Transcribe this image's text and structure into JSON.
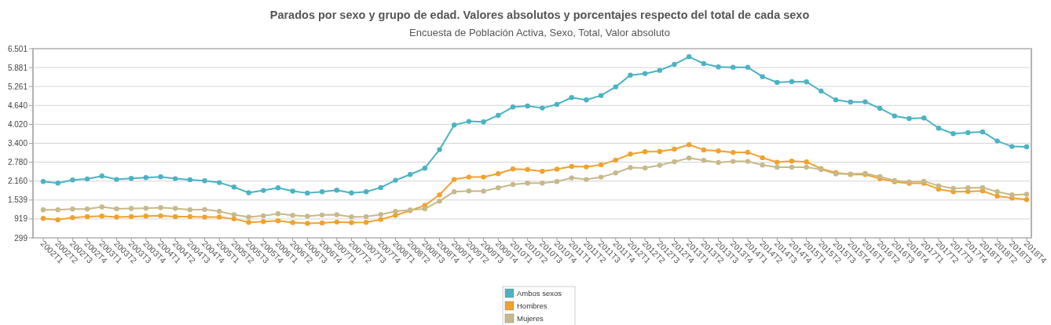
{
  "chart_data": {
    "type": "line",
    "title": "Parados por sexo y grupo de edad. Valores absolutos y porcentajes respecto del total de cada sexo",
    "subtitle": "Encuesta de Población Activa, Sexo, Total, Valor absoluto",
    "categories": [
      "2002T1",
      "2002T2",
      "2002T3",
      "2002T4",
      "2003T1",
      "2003T2",
      "2003T3",
      "2003T4",
      "2004T1",
      "2004T2",
      "2004T3",
      "2004T4",
      "2005T1",
      "2005T2",
      "2005T3",
      "2005T4",
      "2006T1",
      "2006T2",
      "2006T3",
      "2006T4",
      "2007T1",
      "2007T2",
      "2007T3",
      "2007T4",
      "2008T1",
      "2008T2",
      "2008T3",
      "2008T4",
      "2009T1",
      "2009T2",
      "2009T3",
      "2009T4",
      "2010T1",
      "2010T2",
      "2010T3",
      "2010T4",
      "2011T1",
      "2011T2",
      "2011T3",
      "2011T4",
      "2012T1",
      "2012T2",
      "2012T3",
      "2012T4",
      "2013T1",
      "2013T2",
      "2013T3",
      "2013T4",
      "2014T1",
      "2014T2",
      "2014T3",
      "2014T4",
      "2015T1",
      "2015T2",
      "2015T3",
      "2015T4",
      "2016T1",
      "2016T2",
      "2016T3",
      "2016T4",
      "2017T1",
      "2017T2",
      "2017T3",
      "2017T4",
      "2018T1",
      "2018T2",
      "2018T3",
      "2018T4"
    ],
    "series": [
      {
        "name": "Ambos sexos",
        "color": "#4bb3c4",
        "values": [
          2146,
          2094,
          2197,
          2231,
          2326,
          2214,
          2249,
          2275,
          2301,
          2240,
          2206,
          2171,
          2111,
          1966,
          1777,
          1854,
          1940,
          1829,
          1769,
          1812,
          1863,
          1772,
          1812,
          1949,
          2188,
          2378,
          2584,
          3191,
          3999,
          4118,
          4101,
          4315,
          4590,
          4624,
          4555,
          4675,
          4899,
          4822,
          4966,
          5249,
          5634,
          5686,
          5789,
          5987,
          6236,
          6012,
          5902,
          5892,
          5892,
          5583,
          5395,
          5421,
          5413,
          5112,
          4822,
          4752,
          4760,
          4546,
          4297,
          4212,
          4230,
          3896,
          3716,
          3750,
          3775,
          3474,
          3294,
          3286
        ]
      },
      {
        "name": "Hombres",
        "color": "#f0a22e",
        "values": [
          937,
          894,
          963,
          997,
          1014,
          980,
          997,
          1014,
          1023,
          997,
          997,
          980,
          980,
          920,
          808,
          834,
          860,
          800,
          774,
          791,
          817,
          800,
          808,
          901,
          1040,
          1194,
          1365,
          1709,
          2214,
          2291,
          2291,
          2404,
          2558,
          2540,
          2480,
          2549,
          2643,
          2626,
          2695,
          2849,
          3047,
          3124,
          3132,
          3209,
          3355,
          3183,
          3149,
          3098,
          3106,
          2926,
          2780,
          2815,
          2789,
          2566,
          2437,
          2378,
          2378,
          2240,
          2137,
          2085,
          2085,
          1897,
          1812,
          1820,
          1838,
          1665,
          1605,
          1555
        ]
      },
      {
        "name": "Mujeres",
        "color": "#c8b98a",
        "values": [
          1220,
          1220,
          1246,
          1246,
          1314,
          1254,
          1263,
          1272,
          1289,
          1263,
          1220,
          1229,
          1169,
          1057,
          980,
          1023,
          1092,
          1040,
          1006,
          1049,
          1057,
          990,
          997,
          1066,
          1169,
          1211,
          1254,
          1503,
          1812,
          1838,
          1829,
          1940,
          2051,
          2094,
          2094,
          2146,
          2265,
          2214,
          2291,
          2429,
          2601,
          2592,
          2678,
          2797,
          2918,
          2842,
          2772,
          2806,
          2806,
          2687,
          2618,
          2618,
          2618,
          2540,
          2394,
          2394,
          2412,
          2309,
          2180,
          2137,
          2154,
          2008,
          1923,
          1940,
          1949,
          1812,
          1709,
          1726
        ]
      }
    ],
    "ylim": [
      299,
      6501
    ],
    "yticks": [
      {
        "value": 299,
        "label": "299"
      },
      {
        "value": 919,
        "label": "919"
      },
      {
        "value": 1539,
        "label": "1.539"
      },
      {
        "value": 2160,
        "label": "2.160"
      },
      {
        "value": 2780,
        "label": "2.780"
      },
      {
        "value": 3400,
        "label": "3.400"
      },
      {
        "value": 4020,
        "label": "4.020"
      },
      {
        "value": 4640,
        "label": "4.640"
      },
      {
        "value": 5261,
        "label": "5.261"
      },
      {
        "value": 5881,
        "label": "5.881"
      },
      {
        "value": 6501,
        "label": "6.501"
      }
    ],
    "grid": "y",
    "legend": "bottom",
    "marker": "circle",
    "line_style": "solid"
  }
}
